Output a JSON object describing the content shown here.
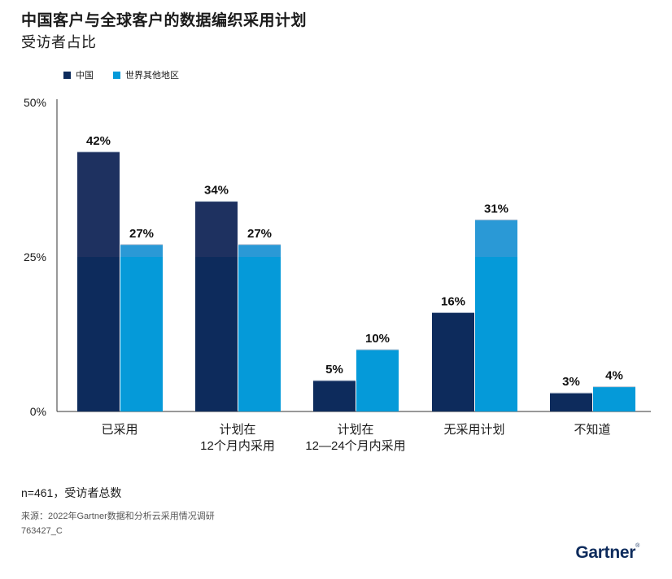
{
  "title": "中国客户与全球客户的数据编织采用计划",
  "subtitle": "受访者占比",
  "colors": {
    "china": "#0d2b5c",
    "china_upper": "#1e3160",
    "world": "#059ad9",
    "world_upper": "#2a99d6",
    "axis": "#333333"
  },
  "chart_data": {
    "type": "bar",
    "categories": [
      "已采用",
      "计划在\n12个月内采用",
      "计划在\n12—24个月内采用",
      "无采用计划",
      "不知道"
    ],
    "series": [
      {
        "name": "中国",
        "values": [
          42,
          34,
          5,
          16,
          3
        ]
      },
      {
        "name": "世界其他地区",
        "values": [
          27,
          27,
          10,
          31,
          4
        ]
      }
    ],
    "data_labels": [
      [
        "42%",
        "34%",
        "5%",
        "16%",
        "3%"
      ],
      [
        "27%",
        "27%",
        "10%",
        "31%",
        "4%"
      ]
    ],
    "yticks": [
      "0%",
      "25%",
      "50%"
    ],
    "ylim": [
      0,
      50
    ],
    "legend_position": "top-left",
    "grid": false
  },
  "footer": {
    "n": "n=461，受访者总数",
    "source": "来源：2022年Gartner数据和分析云采用情况调研",
    "id": "763427_C"
  },
  "logo": {
    "text": "Gartner",
    "mark": "®"
  }
}
